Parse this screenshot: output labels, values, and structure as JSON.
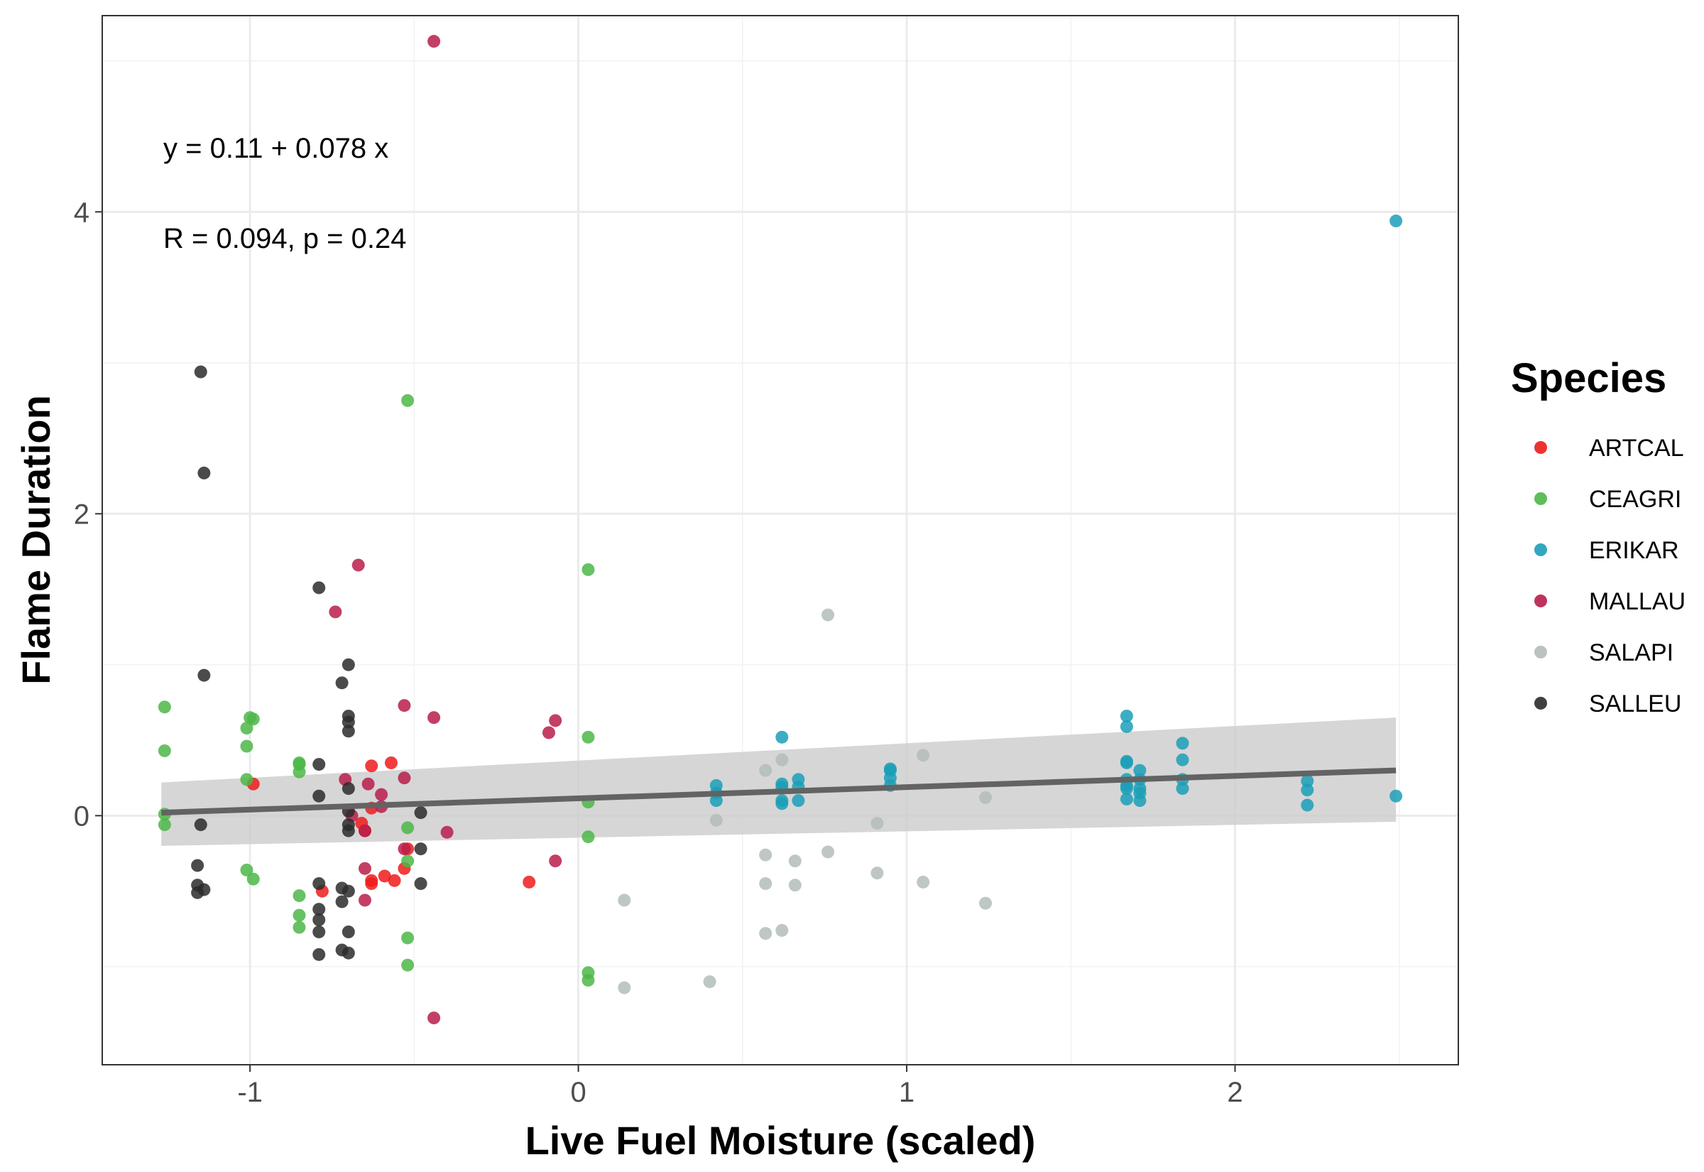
{
  "chart_data": {
    "type": "scatter",
    "title": "",
    "xlabel": "Live Fuel Moisture (scaled)",
    "ylabel": "Flame Duration",
    "xlim": [
      -1.45,
      2.68
    ],
    "ylim": [
      -1.65,
      5.3
    ],
    "x_ticks": [
      -1,
      0,
      1,
      2
    ],
    "y_ticks": [
      0,
      2,
      4
    ],
    "x_tick_labels": [
      "-1",
      "0",
      "1",
      "2"
    ],
    "y_tick_labels": [
      "0",
      "2",
      "4"
    ],
    "grid": true,
    "legend": {
      "title": "Species",
      "placement": "right"
    },
    "annotations": {
      "equation": "y = 0.11 + 0.078 x",
      "stats": "R = 0.094, p = 0.24"
    },
    "fit_line": {
      "color": "#636363",
      "x": [
        -1.27,
        2.49
      ],
      "y": [
        0.02,
        0.3
      ],
      "band_lower": [
        -0.2,
        -0.04
      ],
      "band_upper": [
        0.22,
        0.65
      ],
      "band_color": "#cccccc"
    },
    "series": [
      {
        "name": "ARTCAL",
        "color": "#ee1b1b",
        "points": [
          [
            -0.99,
            0.21
          ],
          [
            -0.78,
            -0.5
          ],
          [
            -0.66,
            -0.05
          ],
          [
            -0.65,
            -0.1
          ],
          [
            -0.63,
            0.33
          ],
          [
            -0.63,
            0.05
          ],
          [
            -0.63,
            -0.43
          ],
          [
            -0.63,
            -0.45
          ],
          [
            -0.59,
            -0.4
          ],
          [
            -0.57,
            0.35
          ],
          [
            -0.56,
            -0.43
          ],
          [
            -0.53,
            -0.35
          ],
          [
            -0.52,
            -0.22
          ],
          [
            -0.15,
            -0.44
          ]
        ]
      },
      {
        "name": "CEAGRI",
        "color": "#4cb748",
        "points": [
          [
            -1.26,
            0.72
          ],
          [
            -1.26,
            0.43
          ],
          [
            -1.26,
            0.01
          ],
          [
            -1.26,
            -0.06
          ],
          [
            -1.01,
            0.58
          ],
          [
            -1.0,
            0.65
          ],
          [
            -0.99,
            0.64
          ],
          [
            -1.01,
            0.46
          ],
          [
            -1.01,
            0.24
          ],
          [
            -1.01,
            -0.36
          ],
          [
            -0.99,
            -0.42
          ],
          [
            -0.85,
            0.35
          ],
          [
            -0.85,
            0.34
          ],
          [
            -0.85,
            0.29
          ],
          [
            -0.85,
            -0.53
          ],
          [
            -0.85,
            -0.66
          ],
          [
            -0.85,
            -0.74
          ],
          [
            -0.52,
            2.75
          ],
          [
            -0.52,
            -0.08
          ],
          [
            -0.52,
            -0.3
          ],
          [
            -0.52,
            -0.81
          ],
          [
            -0.52,
            -0.99
          ],
          [
            0.03,
            1.63
          ],
          [
            0.03,
            0.52
          ],
          [
            0.03,
            0.09
          ],
          [
            0.03,
            -0.14
          ],
          [
            0.03,
            -1.04
          ],
          [
            0.03,
            -1.09
          ]
        ]
      },
      {
        "name": "ERIKAR",
        "color": "#1b9fb9",
        "points": [
          [
            0.42,
            0.2
          ],
          [
            0.42,
            0.15
          ],
          [
            0.42,
            0.1
          ],
          [
            0.62,
            0.52
          ],
          [
            0.62,
            0.21
          ],
          [
            0.62,
            0.19
          ],
          [
            0.62,
            0.1
          ],
          [
            0.62,
            0.08
          ],
          [
            0.67,
            0.24
          ],
          [
            0.67,
            0.19
          ],
          [
            0.67,
            0.1
          ],
          [
            0.95,
            0.31
          ],
          [
            0.95,
            0.3
          ],
          [
            0.95,
            0.25
          ],
          [
            0.95,
            0.2
          ],
          [
            1.67,
            0.66
          ],
          [
            1.67,
            0.59
          ],
          [
            1.67,
            0.36
          ],
          [
            1.67,
            0.35
          ],
          [
            1.67,
            0.24
          ],
          [
            1.67,
            0.2
          ],
          [
            1.67,
            0.18
          ],
          [
            1.67,
            0.11
          ],
          [
            1.71,
            0.3
          ],
          [
            1.71,
            0.24
          ],
          [
            1.71,
            0.18
          ],
          [
            1.71,
            0.15
          ],
          [
            1.71,
            0.1
          ],
          [
            1.84,
            0.48
          ],
          [
            1.84,
            0.37
          ],
          [
            1.84,
            0.24
          ],
          [
            1.84,
            0.18
          ],
          [
            2.22,
            0.23
          ],
          [
            2.22,
            0.17
          ],
          [
            2.22,
            0.07
          ],
          [
            2.49,
            3.94
          ],
          [
            2.49,
            0.13
          ]
        ]
      },
      {
        "name": "MALLAU",
        "color": "#b81d4a",
        "points": [
          [
            -0.44,
            5.13
          ],
          [
            -0.67,
            1.66
          ],
          [
            -0.74,
            1.35
          ],
          [
            -0.53,
            0.73
          ],
          [
            -0.44,
            0.65
          ],
          [
            -0.07,
            0.63
          ],
          [
            -0.09,
            0.55
          ],
          [
            -0.71,
            0.24
          ],
          [
            -0.53,
            0.25
          ],
          [
            -0.6,
            0.14
          ],
          [
            -0.64,
            0.21
          ],
          [
            -0.6,
            0.06
          ],
          [
            -0.69,
            0.0
          ],
          [
            -0.65,
            -0.1
          ],
          [
            -0.4,
            -0.11
          ],
          [
            -0.53,
            -0.22
          ],
          [
            -0.07,
            -0.3
          ],
          [
            -0.65,
            -0.35
          ],
          [
            -0.65,
            -0.56
          ],
          [
            -0.44,
            -1.34
          ]
        ]
      },
      {
        "name": "SALAPI",
        "color": "#b3bdbb",
        "points": [
          [
            0.76,
            1.33
          ],
          [
            0.62,
            0.37
          ],
          [
            1.05,
            0.4
          ],
          [
            0.57,
            0.3
          ],
          [
            1.24,
            0.12
          ],
          [
            0.42,
            -0.03
          ],
          [
            0.91,
            -0.05
          ],
          [
            0.57,
            -0.26
          ],
          [
            0.66,
            -0.3
          ],
          [
            0.76,
            -0.24
          ],
          [
            0.91,
            -0.38
          ],
          [
            0.57,
            -0.45
          ],
          [
            0.66,
            -0.46
          ],
          [
            1.05,
            -0.44
          ],
          [
            0.14,
            -0.56
          ],
          [
            1.24,
            -0.58
          ],
          [
            0.62,
            -0.76
          ],
          [
            0.57,
            -0.78
          ],
          [
            0.4,
            -1.1
          ],
          [
            0.14,
            -1.14
          ]
        ]
      },
      {
        "name": "SALLEU",
        "color": "#2b2b2b",
        "points": [
          [
            -1.15,
            2.94
          ],
          [
            -1.14,
            2.27
          ],
          [
            -0.79,
            1.51
          ],
          [
            -1.14,
            0.93
          ],
          [
            -0.7,
            1.0
          ],
          [
            -0.72,
            0.88
          ],
          [
            -0.7,
            0.66
          ],
          [
            -0.7,
            0.62
          ],
          [
            -0.7,
            0.56
          ],
          [
            -0.79,
            0.34
          ],
          [
            -0.79,
            0.13
          ],
          [
            -0.7,
            0.18
          ],
          [
            -0.7,
            0.03
          ],
          [
            -0.48,
            0.02
          ],
          [
            -1.15,
            -0.06
          ],
          [
            -0.7,
            -0.06
          ],
          [
            -0.7,
            -0.1
          ],
          [
            -1.16,
            -0.33
          ],
          [
            -0.48,
            -0.22
          ],
          [
            -1.16,
            -0.46
          ],
          [
            -1.14,
            -0.49
          ],
          [
            -1.16,
            -0.51
          ],
          [
            -0.79,
            -0.45
          ],
          [
            -0.72,
            -0.48
          ],
          [
            -0.7,
            -0.5
          ],
          [
            -0.48,
            -0.45
          ],
          [
            -0.72,
            -0.57
          ],
          [
            -0.79,
            -0.62
          ],
          [
            -0.79,
            -0.69
          ],
          [
            -0.79,
            -0.77
          ],
          [
            -0.7,
            -0.77
          ],
          [
            -0.72,
            -0.89
          ],
          [
            -0.79,
            -0.92
          ],
          [
            -0.7,
            -0.91
          ]
        ]
      }
    ]
  }
}
